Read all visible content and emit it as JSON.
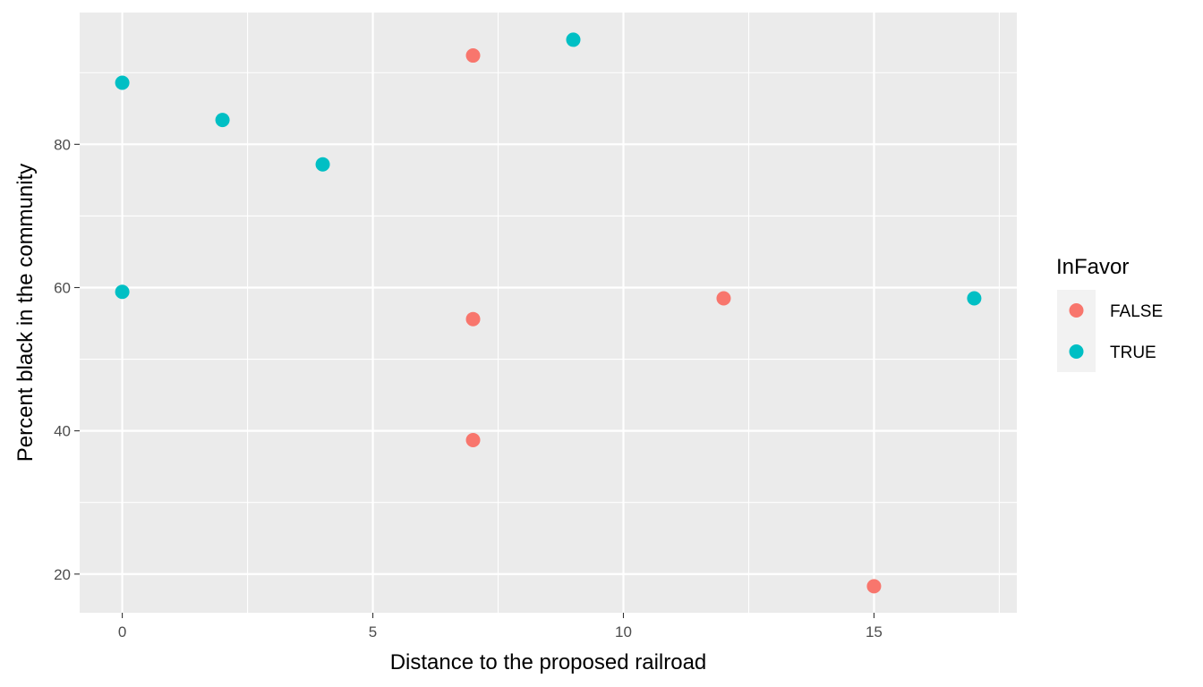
{
  "chart_data": {
    "type": "scatter",
    "title": "",
    "xlabel": "Distance to the proposed railroad",
    "ylabel": "Percent black in the community",
    "xlim": [
      -0.85,
      17.85
    ],
    "ylim": [
      14.6,
      98.4
    ],
    "x_ticks": [
      0,
      5,
      10,
      15
    ],
    "y_ticks": [
      20,
      40,
      60,
      80
    ],
    "grid": true,
    "legend": {
      "title": "InFavor",
      "position": "right",
      "entries": [
        {
          "label": "FALSE",
          "color": "#F8766D"
        },
        {
          "label": "TRUE",
          "color": "#00BFC4"
        }
      ]
    },
    "series": [
      {
        "name": "FALSE",
        "color": "#F8766D",
        "points": [
          {
            "x": 7,
            "y": 92.4
          },
          {
            "x": 7,
            "y": 55.6
          },
          {
            "x": 7,
            "y": 38.7
          },
          {
            "x": 12,
            "y": 58.5
          },
          {
            "x": 15,
            "y": 18.3
          }
        ]
      },
      {
        "name": "TRUE",
        "color": "#00BFC4",
        "points": [
          {
            "x": 0,
            "y": 88.6
          },
          {
            "x": 0,
            "y": 59.4
          },
          {
            "x": 2,
            "y": 83.4
          },
          {
            "x": 4,
            "y": 77.2
          },
          {
            "x": 9,
            "y": 94.6
          },
          {
            "x": 17,
            "y": 58.5
          }
        ]
      }
    ]
  },
  "colors": {
    "panel_background": "#EBEBEB",
    "grid": "#FFFFFF",
    "tick_text": "#4D4D4D",
    "legend_key_background": "#F2F2F2"
  }
}
